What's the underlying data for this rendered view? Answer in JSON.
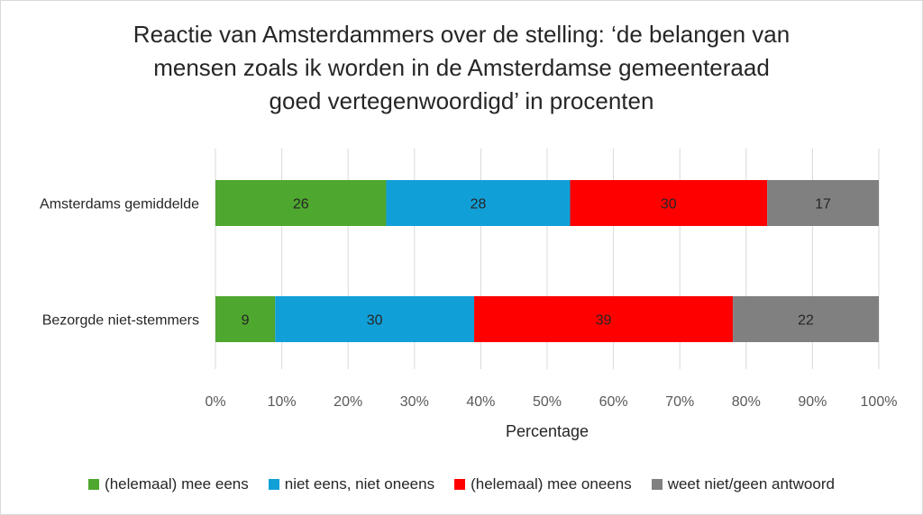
{
  "chart_data": {
    "type": "bar",
    "orientation": "horizontal",
    "stacked": "percent",
    "title_lines": [
      "Reactie van Amsterdammers over de stelling: ‘de belangen van",
      "mensen zoals ik worden in de Amsterdamse gemeenteraad",
      "goed vertegenwoordigd’ in procenten"
    ],
    "xlabel": "Percentage",
    "ylabel": "",
    "xlim": [
      0,
      100
    ],
    "x_ticks": [
      "0%",
      "10%",
      "20%",
      "30%",
      "40%",
      "50%",
      "60%",
      "70%",
      "80%",
      "90%",
      "100%"
    ],
    "categories": [
      "Amsterdams gemiddelde",
      "Bezorgde niet-stemmers"
    ],
    "series": [
      {
        "name": "(helemaal) mee eens",
        "color": "#4EA72E",
        "values": [
          26,
          9
        ]
      },
      {
        "name": "niet eens, niet oneens",
        "color": "#119FD7",
        "values": [
          28,
          30
        ]
      },
      {
        "name": "(helemaal) mee oneens",
        "color": "#FF0000",
        "values": [
          30,
          39
        ]
      },
      {
        "name": "weet niet/geen antwoord",
        "color": "#808080",
        "values": [
          17,
          22
        ]
      }
    ],
    "grid": true,
    "legend_position": "bottom"
  }
}
